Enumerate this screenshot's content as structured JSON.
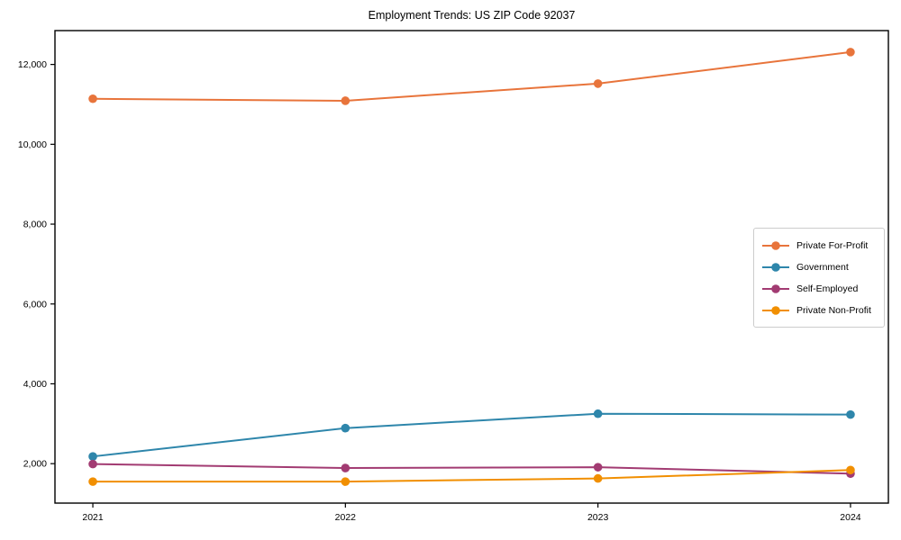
{
  "chart_data": {
    "type": "line",
    "title": "Employment Trends: US ZIP Code 92037",
    "x": [
      "2021",
      "2022",
      "2023",
      "2024"
    ],
    "series": [
      {
        "name": "Private For-Profit",
        "color": "#E8743B",
        "values": [
          11140,
          11090,
          11520,
          12310
        ]
      },
      {
        "name": "Government",
        "color": "#2E86AB",
        "values": [
          2180,
          2890,
          3250,
          3230
        ]
      },
      {
        "name": "Self-Employed",
        "color": "#A23B72",
        "values": [
          1990,
          1890,
          1910,
          1750
        ]
      },
      {
        "name": "Private Non-Profit",
        "color": "#F18F01",
        "values": [
          1550,
          1550,
          1630,
          1840
        ]
      }
    ],
    "xlabel": "",
    "ylabel": "",
    "yticks": [
      2000,
      4000,
      6000,
      8000,
      10000,
      12000
    ],
    "ylim": [
      1012,
      12848
    ],
    "xlim": [
      -0.15,
      3.15
    ],
    "grid": false,
    "marker": "circle",
    "legend_position": "middle-right",
    "axis_color": "#000000",
    "background_color": "#ffffff"
  }
}
